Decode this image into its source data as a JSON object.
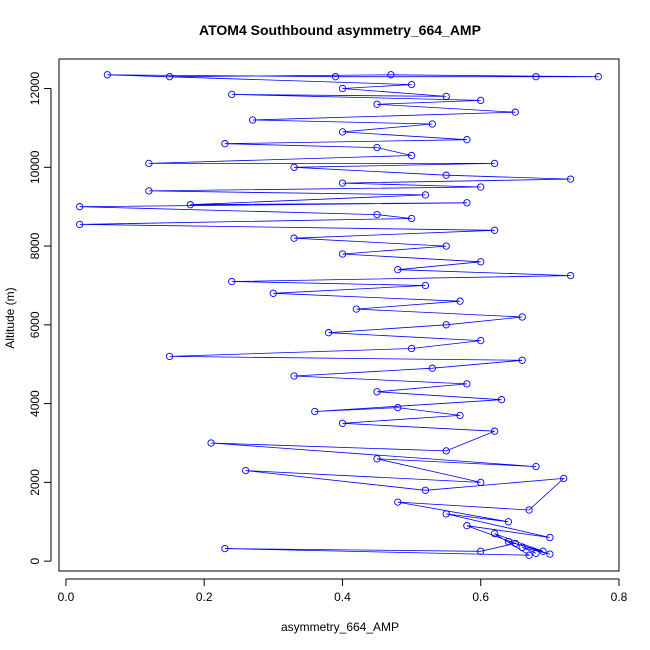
{
  "chart_data": {
    "type": "line",
    "title": "ATOM4 Southbound asymmetry_664_AMP",
    "xlabel": "asymmetry_664_AMP",
    "ylabel": "Altitude (m)",
    "xlim": [
      -0.01,
      0.8
    ],
    "ylim": [
      -250,
      12750
    ],
    "x_ticks": [
      0.0,
      0.2,
      0.4,
      0.6,
      0.8
    ],
    "x_tick_labels": [
      "0.0",
      "0.2",
      "0.4",
      "0.6",
      "0.8"
    ],
    "y_ticks": [
      0,
      2000,
      4000,
      6000,
      8000,
      10000,
      12000
    ],
    "y_tick_labels": [
      "0",
      "2000",
      "4000",
      "6000",
      "8000",
      "10000",
      "12000"
    ],
    "grid": false,
    "legend": "none",
    "marker": "open-circle",
    "line_color": "#0000ff",
    "series": [
      {
        "points": [
          [
            0.68,
            200
          ],
          [
            0.66,
            350
          ],
          [
            0.7,
            180
          ],
          [
            0.64,
            500
          ],
          [
            0.69,
            250
          ],
          [
            0.62,
            700
          ],
          [
            0.67,
            150
          ],
          [
            0.23,
            320
          ],
          [
            0.6,
            250
          ],
          [
            0.65,
            450
          ],
          [
            0.58,
            900
          ],
          [
            0.7,
            600
          ],
          [
            0.55,
            1200
          ],
          [
            0.64,
            1000
          ],
          [
            0.48,
            1500
          ],
          [
            0.67,
            1300
          ],
          [
            0.72,
            2100
          ],
          [
            0.52,
            1800
          ],
          [
            0.26,
            2300
          ],
          [
            0.6,
            2000
          ],
          [
            0.45,
            2600
          ],
          [
            0.68,
            2400
          ],
          [
            0.21,
            3000
          ],
          [
            0.55,
            2800
          ],
          [
            0.62,
            3300
          ],
          [
            0.4,
            3500
          ],
          [
            0.57,
            3700
          ],
          [
            0.48,
            3900
          ],
          [
            0.36,
            3800
          ],
          [
            0.63,
            4100
          ],
          [
            0.45,
            4300
          ],
          [
            0.58,
            4500
          ],
          [
            0.33,
            4700
          ],
          [
            0.53,
            4900
          ],
          [
            0.66,
            5100
          ],
          [
            0.15,
            5200
          ],
          [
            0.5,
            5400
          ],
          [
            0.6,
            5600
          ],
          [
            0.38,
            5800
          ],
          [
            0.55,
            6000
          ],
          [
            0.66,
            6200
          ],
          [
            0.42,
            6400
          ],
          [
            0.57,
            6600
          ],
          [
            0.3,
            6800
          ],
          [
            0.52,
            7000
          ],
          [
            0.24,
            7100
          ],
          [
            0.73,
            7250
          ],
          [
            0.48,
            7400
          ],
          [
            0.6,
            7600
          ],
          [
            0.4,
            7800
          ],
          [
            0.55,
            8000
          ],
          [
            0.33,
            8200
          ],
          [
            0.62,
            8400
          ],
          [
            0.02,
            8550
          ],
          [
            0.5,
            8700
          ],
          [
            0.45,
            8800
          ],
          [
            0.02,
            9000
          ],
          [
            0.58,
            9100
          ],
          [
            0.18,
            9050
          ],
          [
            0.52,
            9300
          ],
          [
            0.12,
            9400
          ],
          [
            0.6,
            9500
          ],
          [
            0.4,
            9600
          ],
          [
            0.73,
            9700
          ],
          [
            0.55,
            9800
          ],
          [
            0.33,
            10000
          ],
          [
            0.62,
            10100
          ],
          [
            0.12,
            10100
          ],
          [
            0.5,
            10300
          ],
          [
            0.45,
            10500
          ],
          [
            0.23,
            10600
          ],
          [
            0.58,
            10700
          ],
          [
            0.4,
            10900
          ],
          [
            0.53,
            11100
          ],
          [
            0.27,
            11200
          ],
          [
            0.65,
            11400
          ],
          [
            0.45,
            11600
          ],
          [
            0.6,
            11700
          ],
          [
            0.24,
            11850
          ],
          [
            0.55,
            11800
          ],
          [
            0.4,
            12000
          ],
          [
            0.5,
            12100
          ],
          [
            0.06,
            12350
          ],
          [
            0.39,
            12300
          ],
          [
            0.68,
            12300
          ],
          [
            0.77,
            12300
          ],
          [
            0.47,
            12350
          ],
          [
            0.15,
            12300
          ]
        ]
      }
    ]
  }
}
